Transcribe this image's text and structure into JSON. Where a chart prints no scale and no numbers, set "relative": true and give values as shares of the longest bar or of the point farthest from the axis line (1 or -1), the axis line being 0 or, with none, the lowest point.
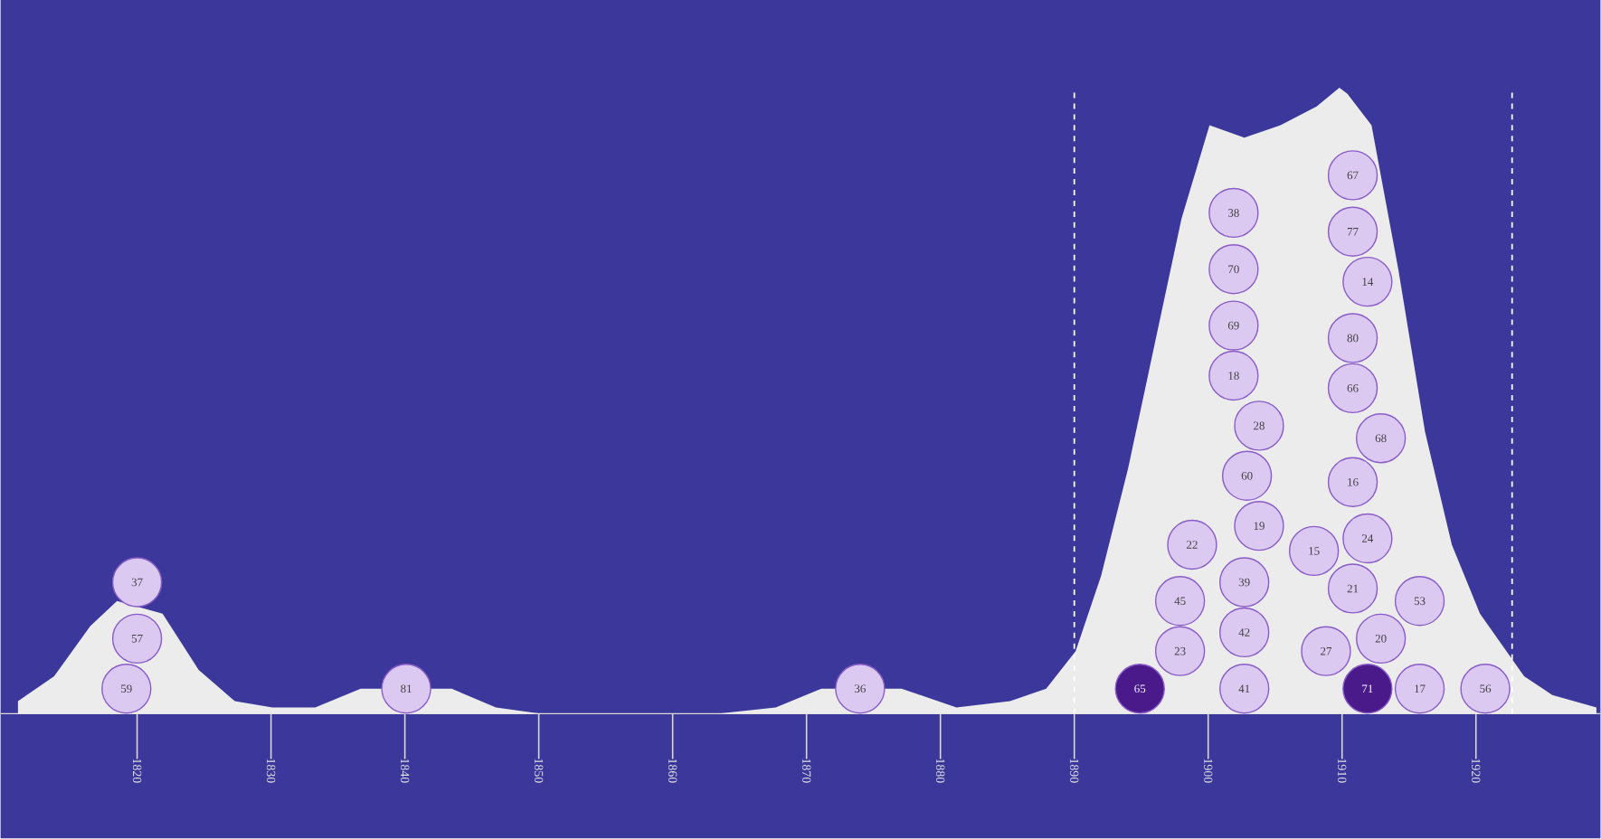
{
  "chart_data": {
    "type": "area",
    "relative": true,
    "tick_labels": "x",
    "xlim": [
      1809.8,
      1929.3
    ],
    "xticks": [
      1820,
      1830,
      1840,
      1850,
      1860,
      1870,
      1880,
      1890,
      1900,
      1910,
      1920
    ],
    "ref_lines": [
      {
        "axis": "x",
        "value": 1890,
        "color": "#ffffff",
        "line_style": "dashed"
      },
      {
        "axis": "x",
        "value": 1922.7,
        "color": "#ffffff",
        "line_style": "dashed"
      }
    ],
    "annotations": [
      {
        "text": "59",
        "x": 1819.2,
        "y": 0.04
      },
      {
        "text": "57",
        "x": 1820,
        "y": 0.12
      },
      {
        "text": "37",
        "x": 1820,
        "y": 0.21
      },
      {
        "text": "81",
        "x": 1840.1,
        "y": 0.04
      },
      {
        "text": "36",
        "x": 1874,
        "y": 0.04
      },
      {
        "text": "65",
        "x": 1894.9,
        "y": 0.04
      },
      {
        "text": "23",
        "x": 1897.9,
        "y": 0.1
      },
      {
        "text": "45",
        "x": 1897.9,
        "y": 0.18
      },
      {
        "text": "22",
        "x": 1898.8,
        "y": 0.27
      },
      {
        "text": "41",
        "x": 1902.7,
        "y": 0.04
      },
      {
        "text": "42",
        "x": 1902.7,
        "y": 0.13
      },
      {
        "text": "39",
        "x": 1902.7,
        "y": 0.21
      },
      {
        "text": "19",
        "x": 1903.8,
        "y": 0.3
      },
      {
        "text": "60",
        "x": 1902.9,
        "y": 0.38
      },
      {
        "text": "28",
        "x": 1903.8,
        "y": 0.46
      },
      {
        "text": "18",
        "x": 1901.9,
        "y": 0.54
      },
      {
        "text": "69",
        "x": 1901.9,
        "y": 0.62
      },
      {
        "text": "70",
        "x": 1901.9,
        "y": 0.71
      },
      {
        "text": "38",
        "x": 1901.9,
        "y": 0.8
      },
      {
        "text": "67",
        "x": 1910.8,
        "y": 0.86
      },
      {
        "text": "77",
        "x": 1910.8,
        "y": 0.77
      },
      {
        "text": "14",
        "x": 1911.9,
        "y": 0.69
      },
      {
        "text": "80",
        "x": 1910.8,
        "y": 0.6
      },
      {
        "text": "66",
        "x": 1910.8,
        "y": 0.52
      },
      {
        "text": "68",
        "x": 1912.9,
        "y": 0.44
      },
      {
        "text": "16",
        "x": 1910.8,
        "y": 0.37
      },
      {
        "text": "24",
        "x": 1911.9,
        "y": 0.28
      },
      {
        "text": "15",
        "x": 1907.9,
        "y": 0.26
      },
      {
        "text": "21",
        "x": 1910.8,
        "y": 0.2
      },
      {
        "text": "53",
        "x": 1915.8,
        "y": 0.18
      },
      {
        "text": "20",
        "x": 1912.9,
        "y": 0.12
      },
      {
        "text": "27",
        "x": 1908.8,
        "y": 0.1
      },
      {
        "text": "71",
        "x": 1911.9,
        "y": 0.04
      },
      {
        "text": "17",
        "x": 1915.8,
        "y": 0.04
      },
      {
        "text": "56",
        "x": 1920.7,
        "y": 0.04
      }
    ],
    "series": [
      {
        "color": "#ececec",
        "x": [
          1811.1,
          1813.8,
          1816.5,
          1818.5,
          1821.9,
          1824.6,
          1827.3,
          1830.1,
          1833.3,
          1836.7,
          1843.5,
          1846.8,
          1850.2,
          null,
          1863.3,
          1867.7,
          1871.1,
          1877.1,
          1881.2,
          1885.2,
          1887.9,
          1890.1,
          1892,
          1894,
          1896,
          1898,
          1900.1,
          1902.7,
          1905.4,
          1908.1,
          1909.8,
          1910.4,
          1912.2,
          1914.2,
          1916.2,
          1918.2,
          1920.3,
          1923.6,
          1925.7,
          1929
        ],
        "values": [
          0.02,
          0.06,
          0.14,
          0.18,
          0.16,
          0.07,
          0.02,
          0.01,
          0.01,
          0.04,
          0.04,
          0.01,
          0,
          null,
          0,
          0.01,
          0.04,
          0.04,
          0.01,
          0.02,
          0.04,
          0.1,
          0.22,
          0.39,
          0.59,
          0.79,
          0.94,
          0.92,
          0.94,
          0.97,
          1,
          0.99,
          0.94,
          0.71,
          0.45,
          0.27,
          0.16,
          0.06,
          0.03,
          0.01
        ]
      },
      {
        "type": "scatter",
        "marker": "circle",
        "x": [
          1819.2,
          1820,
          1820,
          1840.1,
          1874,
          1894.9,
          1897.9,
          1897.9,
          1898.8,
          1902.7,
          1902.7,
          1902.7,
          1903.8,
          1902.9,
          1903.8,
          1901.9,
          1901.9,
          1901.9,
          1901.9,
          1910.8,
          1910.8,
          1911.9,
          1910.8,
          1910.8,
          1912.9,
          1910.8,
          1911.9,
          1907.9,
          1910.8,
          1915.8,
          1912.9,
          1908.8,
          1911.9,
          1915.8,
          1920.7
        ],
        "values": [
          0.04,
          0.12,
          0.21,
          0.04,
          0.04,
          0.04,
          0.1,
          0.18,
          0.27,
          0.04,
          0.13,
          0.21,
          0.3,
          0.38,
          0.46,
          0.54,
          0.62,
          0.71,
          0.8,
          0.86,
          0.77,
          0.69,
          0.6,
          0.52,
          0.44,
          0.37,
          0.28,
          0.26,
          0.2,
          0.18,
          0.12,
          0.1,
          0.04,
          0.04,
          0.04
        ],
        "colors": [
          "#dcc9f2",
          "#dcc9f2",
          "#dcc9f2",
          "#dcc9f2",
          "#dcc9f2",
          "#4a1a8a",
          "#dcc9f2",
          "#dcc9f2",
          "#dcc9f2",
          "#dcc9f2",
          "#dcc9f2",
          "#dcc9f2",
          "#dcc9f2",
          "#dcc9f2",
          "#dcc9f2",
          "#dcc9f2",
          "#dcc9f2",
          "#dcc9f2",
          "#dcc9f2",
          "#dcc9f2",
          "#dcc9f2",
          "#dcc9f2",
          "#dcc9f2",
          "#dcc9f2",
          "#dcc9f2",
          "#dcc9f2",
          "#dcc9f2",
          "#dcc9f2",
          "#dcc9f2",
          "#dcc9f2",
          "#dcc9f2",
          "#dcc9f2",
          "#4a1a8a",
          "#dcc9f2",
          "#dcc9f2"
        ]
      }
    ]
  }
}
